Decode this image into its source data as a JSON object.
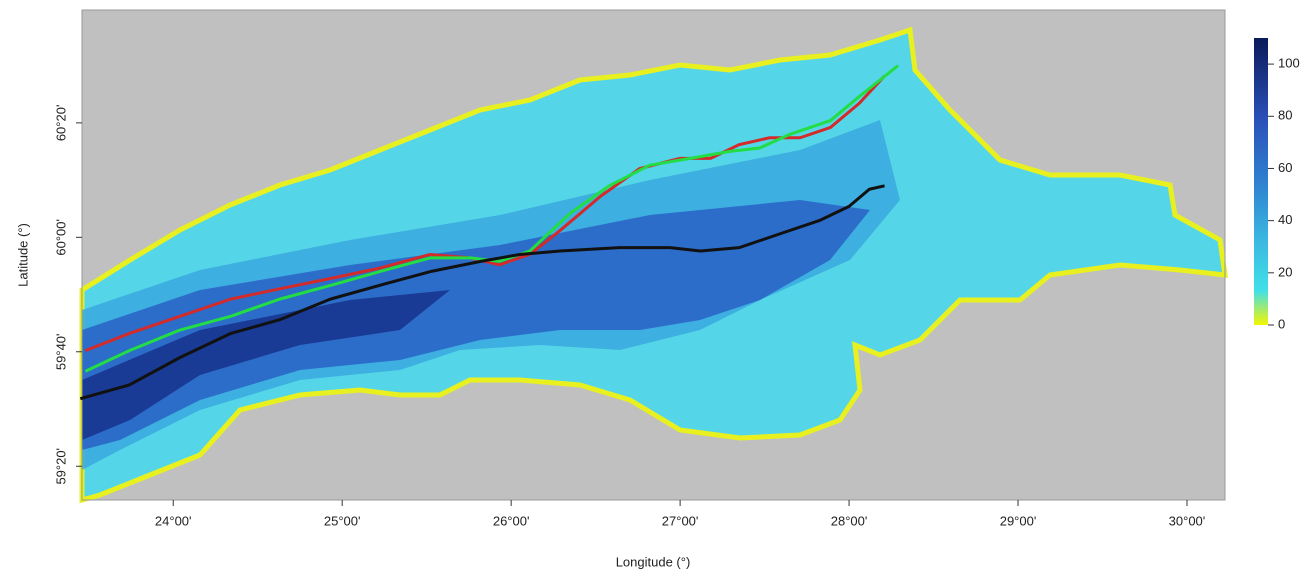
{
  "chart_data": {
    "type": "map",
    "x_label": "Longitude (°)",
    "y_label": "Latitude (°)",
    "xlim": [
      23.46,
      30.225
    ],
    "ylim": [
      59.235,
      60.662
    ],
    "xticks": [
      {
        "value": 24,
        "label": "24°00'"
      },
      {
        "value": 25,
        "label": "25°00'"
      },
      {
        "value": 26,
        "label": "26°00'"
      },
      {
        "value": 27,
        "label": "27°00'"
      },
      {
        "value": 28,
        "label": "28°00'"
      },
      {
        "value": 29,
        "label": "29°00'"
      },
      {
        "value": 30,
        "label": "30°00'"
      }
    ],
    "yticks": [
      {
        "value": 59.3333,
        "label": "59°20'"
      },
      {
        "value": 59.6667,
        "label": "59°40'"
      },
      {
        "value": 60,
        "label": "60°00'"
      },
      {
        "value": 60.3333,
        "label": "60°20'"
      }
    ],
    "colorbar": {
      "lim": [
        0,
        110
      ],
      "ticks": [
        0,
        20,
        40,
        60,
        80,
        100
      ]
    },
    "series": [
      {
        "color": "#d42a2a",
        "x": [
          23.48,
          23.74,
          24.04,
          24.34,
          24.63,
          24.93,
          25.22,
          25.52,
          25.76,
          25.93,
          26.11,
          26.29,
          26.53,
          26.76,
          27.0,
          27.18,
          27.35,
          27.53,
          27.71,
          27.89,
          28.06,
          28.21
        ],
        "y": [
          59.67,
          59.72,
          59.77,
          59.82,
          59.85,
          59.88,
          59.91,
          59.95,
          59.94,
          59.92,
          59.95,
          60.02,
          60.12,
          60.2,
          60.23,
          60.23,
          60.27,
          60.29,
          60.29,
          60.32,
          60.39,
          60.47
        ]
      },
      {
        "color": "#22dd44",
        "x": [
          23.48,
          23.74,
          24.04,
          24.34,
          24.63,
          24.93,
          25.22,
          25.52,
          25.76,
          25.93,
          26.11,
          26.35,
          26.58,
          26.82,
          27.06,
          27.29,
          27.47,
          27.65,
          27.89,
          28.06,
          28.29
        ],
        "y": [
          59.61,
          59.67,
          59.73,
          59.77,
          59.82,
          59.86,
          59.9,
          59.94,
          59.94,
          59.93,
          59.96,
          60.07,
          60.15,
          60.21,
          60.23,
          60.25,
          60.26,
          60.3,
          60.34,
          60.41,
          60.5
        ]
      },
      {
        "color": "#111111",
        "x": [
          23.45,
          23.74,
          24.04,
          24.34,
          24.63,
          24.93,
          25.22,
          25.52,
          25.82,
          26.05,
          26.29,
          26.64,
          26.94,
          27.12,
          27.35,
          27.59,
          27.83,
          28.0,
          28.12,
          28.21
        ],
        "y": [
          59.53,
          59.57,
          59.65,
          59.72,
          59.76,
          59.82,
          59.86,
          59.9,
          59.93,
          59.95,
          59.96,
          59.97,
          59.97,
          59.96,
          59.97,
          60.01,
          60.05,
          60.09,
          60.14,
          60.15
        ]
      }
    ]
  }
}
